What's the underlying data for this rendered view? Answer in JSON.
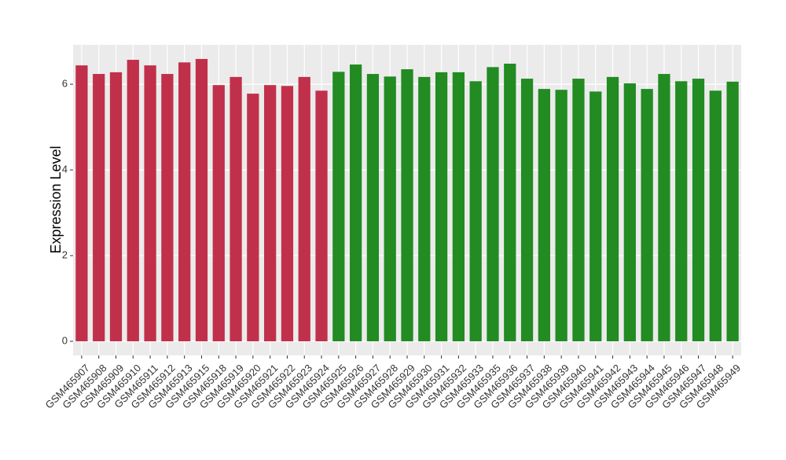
{
  "chart_data": {
    "type": "bar",
    "y_label": "Expression Level",
    "categories": [
      "GSM465907",
      "GSM465908",
      "GSM465909",
      "GSM465910",
      "GSM465911",
      "GSM465912",
      "GSM465913",
      "GSM465915",
      "GSM465918",
      "GSM465919",
      "GSM465920",
      "GSM465921",
      "GSM465922",
      "GSM465923",
      "GSM465924",
      "GSM465925",
      "GSM465926",
      "GSM465927",
      "GSM465928",
      "GSM465929",
      "GSM465930",
      "GSM465931",
      "GSM465932",
      "GSM465933",
      "GSM465935",
      "GSM465936",
      "GSM465937",
      "GSM465938",
      "GSM465939",
      "GSM465940",
      "GSM465941",
      "GSM465942",
      "GSM465943",
      "GSM465944",
      "GSM465945",
      "GSM465946",
      "GSM465947",
      "GSM465948",
      "GSM465949"
    ],
    "values": [
      6.44,
      6.24,
      6.28,
      6.57,
      6.44,
      6.24,
      6.51,
      6.59,
      5.98,
      6.17,
      5.78,
      5.98,
      5.96,
      6.17,
      5.85,
      6.29,
      6.46,
      6.24,
      6.18,
      6.35,
      6.17,
      6.28,
      6.28,
      6.07,
      6.4,
      6.48,
      6.13,
      5.89,
      5.87,
      6.13,
      5.83,
      6.17,
      6.02,
      5.89,
      6.24,
      6.07,
      6.13,
      5.85,
      6.06
    ],
    "colors": [
      "#c1304a",
      "#c1304a",
      "#c1304a",
      "#c1304a",
      "#c1304a",
      "#c1304a",
      "#c1304a",
      "#c1304a",
      "#c1304a",
      "#c1304a",
      "#c1304a",
      "#c1304a",
      "#c1304a",
      "#c1304a",
      "#c1304a",
      "#228b22",
      "#228b22",
      "#228b22",
      "#228b22",
      "#228b22",
      "#228b22",
      "#228b22",
      "#228b22",
      "#228b22",
      "#228b22",
      "#228b22",
      "#228b22",
      "#228b22",
      "#228b22",
      "#228b22",
      "#228b22",
      "#228b22",
      "#228b22",
      "#228b22",
      "#228b22",
      "#228b22",
      "#228b22",
      "#228b22",
      "#228b22"
    ],
    "ylim": [
      -0.33,
      6.92
    ],
    "yticks": [
      0,
      2,
      4,
      6
    ],
    "grid": true
  }
}
